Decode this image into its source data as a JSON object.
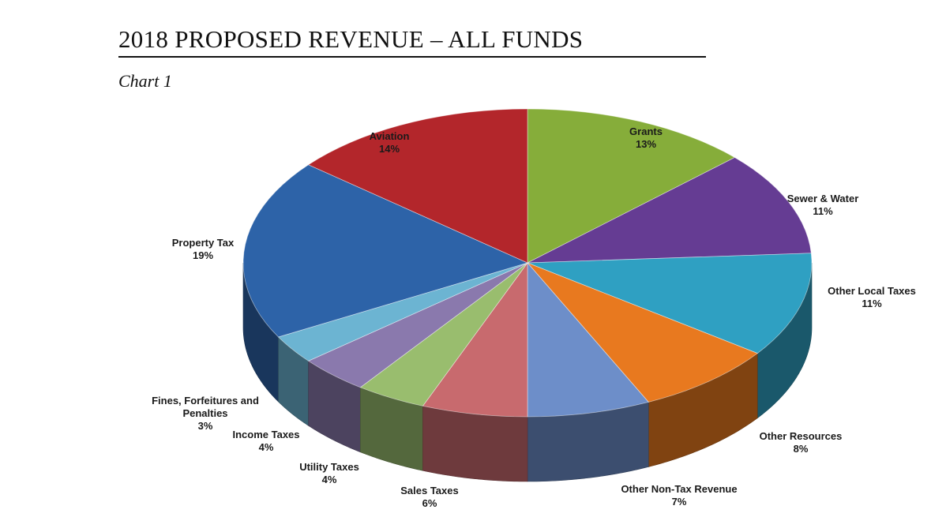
{
  "header": {
    "title": "2018 PROPOSED REVENUE – ALL FUNDS",
    "subtitle": "Chart 1"
  },
  "chart_data": {
    "type": "pie",
    "title": "2018 PROPOSED REVENUE – ALL FUNDS",
    "subtitle": "Chart 1",
    "style": "3d-exploded-ellipse",
    "start_direction": "top",
    "direction": "clockwise",
    "slices": [
      {
        "name": "Grants",
        "value": 13,
        "label": "13%",
        "color": "#86ad3a"
      },
      {
        "name": "Sewer & Water",
        "value": 11,
        "label": "11%",
        "color": "#653c93"
      },
      {
        "name": "Other Local Taxes",
        "value": 11,
        "label": "11%",
        "color": "#2fa0c2"
      },
      {
        "name": "Other Resources",
        "value": 8,
        "label": "8%",
        "color": "#e8791f"
      },
      {
        "name": "Other Non-Tax Revenue",
        "value": 7,
        "label": "7%",
        "color": "#6d8ec9"
      },
      {
        "name": "Sales Taxes",
        "value": 6,
        "label": "6%",
        "color": "#c86a6e"
      },
      {
        "name": "Utility Taxes",
        "value": 4,
        "label": "4%",
        "color": "#99bd6e"
      },
      {
        "name": "Income Taxes",
        "value": 4,
        "label": "4%",
        "color": "#8a79ad"
      },
      {
        "name": "Fines, Forfeitures and Penalties",
        "value": 3,
        "label": "3%",
        "color": "#6cb4d2"
      },
      {
        "name": "Property Tax",
        "value": 19,
        "label": "19%",
        "color": "#2d63a8"
      },
      {
        "name": "Aviation",
        "value": 14,
        "label": "14%",
        "color": "#b3262b"
      }
    ]
  }
}
